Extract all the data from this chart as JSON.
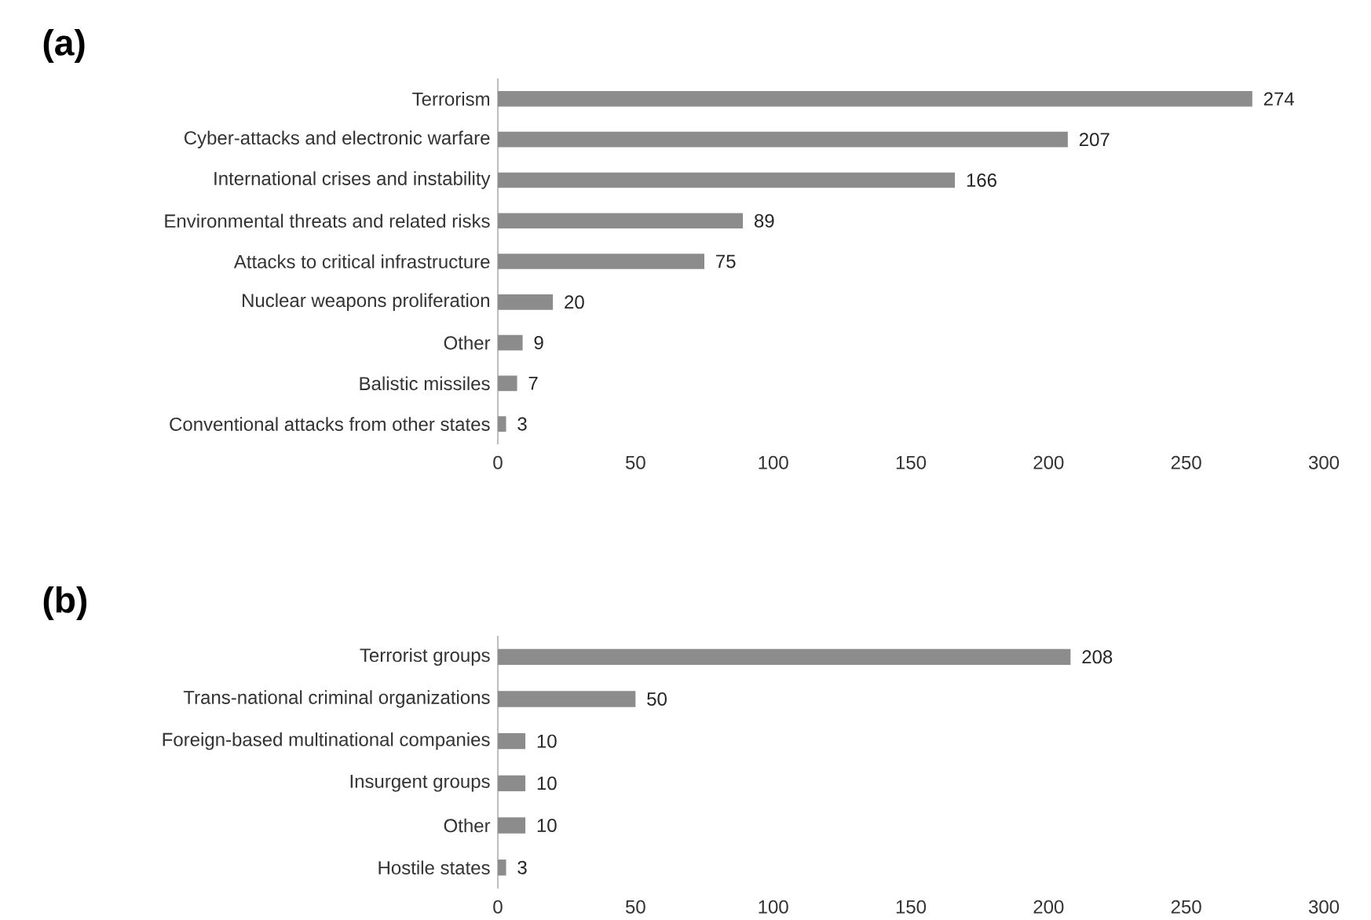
{
  "chart_data": [
    {
      "type": "bar",
      "orientation": "horizontal",
      "title": "(a)",
      "categories": [
        "Terrorism",
        "Cyber-attacks and electronic warfare",
        "International crises and instability",
        "Environmental threats and related risks",
        "Attacks to critical infrastructure",
        "Nuclear weapons proliferation",
        "Other",
        "Balistic missiles",
        "Conventional attacks from other states"
      ],
      "values": [
        274,
        207,
        166,
        89,
        75,
        20,
        9,
        7,
        3
      ],
      "color": "#8c8c8c",
      "xlim": [
        0,
        300
      ],
      "xticks": [
        0,
        50,
        100,
        150,
        200,
        250,
        300
      ],
      "data_labels": true
    },
    {
      "type": "bar",
      "orientation": "horizontal",
      "title": "(b)",
      "categories": [
        "Terrorist groups",
        "Trans-national criminal organizations",
        "Foreign-based multinational companies",
        "Insurgent groups",
        "Other",
        "Hostile states"
      ],
      "values": [
        208,
        50,
        10,
        10,
        10,
        3
      ],
      "color": "#8c8c8c",
      "xlim": [
        0,
        300
      ],
      "xticks": [
        0,
        50,
        100,
        150,
        200,
        250,
        300
      ],
      "data_labels": true
    }
  ]
}
